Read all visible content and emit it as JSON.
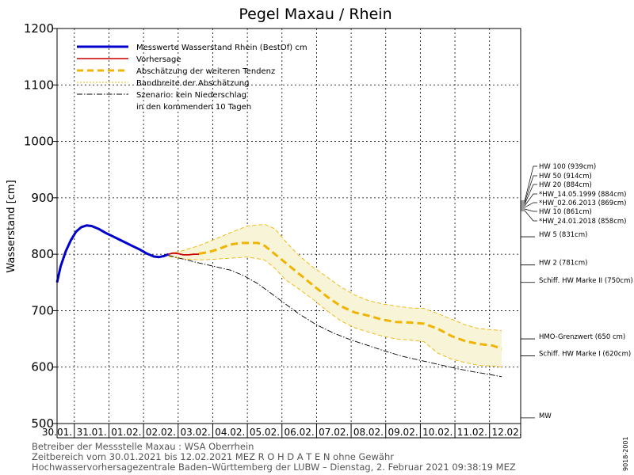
{
  "chart_data": {
    "type": "line",
    "title": "Pegel Maxau / Rhein",
    "ylabel": "Wasserstand [cm]",
    "ylim": [
      500,
      1200
    ],
    "yticks": [
      500,
      600,
      700,
      800,
      900,
      1000,
      1100,
      1200
    ],
    "xlim": [
      0,
      13.4
    ],
    "xticks": [
      "30.01.",
      "31.01.",
      "01.02.",
      "02.02.",
      "03.02.",
      "04.02.",
      "05.02.",
      "06.02.",
      "07.02.",
      "08.02.",
      "09.02.",
      "10.02.",
      "11.02.",
      "12.02."
    ],
    "grid": true,
    "legend_position": "top-left",
    "legend": [
      {
        "label": "Messwerte Wasserstand Rhein (BestOf)   cm",
        "color": "#0000cc",
        "style": "solid-thick"
      },
      {
        "label": "Vorhersage",
        "color": "#cc0000",
        "style": "solid"
      },
      {
        "label": "Abschätzung der weiteren Tendenz",
        "color": "#f0b400",
        "style": "dashed-thick"
      },
      {
        "label": "Bandbreite der Abschätzung",
        "color": "#f0b400",
        "style": "dotted"
      },
      {
        "label": "Szenario: kein Niederschlag",
        "color": "#000000",
        "style": "dash-dot"
      },
      {
        "label": "in den kommenden 10 Tagen",
        "color": "",
        "style": "none"
      }
    ],
    "series": [
      {
        "name": "Messwerte Wasserstand Rhein (BestOf)",
        "color": "#0000cc",
        "x": [
          0,
          0.1,
          0.25,
          0.4,
          0.55,
          0.7,
          0.85,
          1.0,
          1.2,
          1.4,
          1.6,
          1.8,
          2.0,
          2.2,
          2.4,
          2.6,
          2.8,
          2.95,
          3.1,
          3.22
        ],
        "y": [
          750,
          778,
          805,
          825,
          840,
          848,
          851,
          850,
          845,
          838,
          832,
          826,
          820,
          814,
          808,
          801,
          796,
          795,
          797,
          800
        ]
      },
      {
        "name": "Vorhersage",
        "color": "#cc0000",
        "x": [
          3.22,
          3.35,
          3.5,
          3.65,
          3.8,
          3.95,
          4.1
        ],
        "y": [
          800,
          802,
          801,
          799,
          799,
          800,
          800
        ]
      },
      {
        "name": "Abschätzung der weiteren Tendenz",
        "color": "#f0b400",
        "x": [
          4.1,
          4.4,
          4.7,
          5.0,
          5.3,
          5.6,
          5.8,
          6.0,
          6.3,
          6.6,
          7.0,
          7.4,
          7.8,
          8.2,
          8.6,
          9.0,
          9.4,
          9.8,
          10.2,
          10.6,
          11.0,
          11.4,
          11.8,
          12.2,
          12.6,
          12.85
        ],
        "y": [
          801,
          804,
          810,
          817,
          820,
          820,
          820,
          815,
          800,
          785,
          765,
          745,
          725,
          708,
          697,
          691,
          684,
          680,
          679,
          677,
          668,
          655,
          646,
          641,
          638,
          632
        ]
      },
      {
        "name": "Bandbreite der Abschätzung (oben)",
        "color": "#f0b400",
        "x": [
          3.22,
          3.6,
          4.1,
          4.5,
          5.0,
          5.5,
          6.0,
          6.3,
          6.6,
          7.0,
          7.4,
          7.8,
          8.2,
          8.6,
          9.0,
          9.4,
          9.8,
          10.2,
          10.6,
          11.0,
          11.4,
          11.8,
          12.2,
          12.6,
          12.85
        ],
        "y": [
          800,
          806,
          815,
          825,
          838,
          850,
          853,
          845,
          823,
          797,
          777,
          760,
          742,
          728,
          718,
          712,
          708,
          705,
          704,
          695,
          685,
          675,
          668,
          666,
          665
        ]
      },
      {
        "name": "Bandbreite der Abschätzung (unten)",
        "color": "#f0b400",
        "x": [
          3.22,
          3.6,
          4.1,
          4.5,
          5.0,
          5.5,
          6.0,
          6.3,
          6.6,
          7.0,
          7.4,
          7.8,
          8.2,
          8.6,
          9.0,
          9.4,
          9.8,
          10.2,
          10.6,
          11.0,
          11.4,
          11.8,
          12.2,
          12.6,
          12.85
        ],
        "y": [
          796,
          792,
          790,
          791,
          793,
          795,
          790,
          775,
          755,
          738,
          720,
          700,
          682,
          670,
          662,
          655,
          650,
          648,
          645,
          625,
          614,
          608,
          603,
          602,
          600
        ]
      },
      {
        "name": "Szenario: kein Niederschlag",
        "color": "#000000",
        "x": [
          3.22,
          3.6,
          4.0,
          4.5,
          5.0,
          5.4,
          5.8,
          6.2,
          6.6,
          7.0,
          7.5,
          8.0,
          8.5,
          9.0,
          9.5,
          10.0,
          10.5,
          11.0,
          11.5,
          12.0,
          12.5,
          12.85
        ],
        "y": [
          798,
          792,
          786,
          779,
          772,
          762,
          748,
          730,
          712,
          694,
          675,
          660,
          648,
          638,
          628,
          619,
          612,
          605,
          598,
          592,
          587,
          583
        ]
      }
    ],
    "reference_lines": [
      {
        "label": "HW 100 (939cm)"
      },
      {
        "label": "HW 50 (914cm)"
      },
      {
        "label": "HW 20 (884cm)"
      },
      {
        "label": "*HW_14.05.1999 (884cm)"
      },
      {
        "label": "*HW_02.06.2013 (869cm)"
      },
      {
        "label": "HW 10 (861cm)"
      },
      {
        "label": "*HW_24.01.2018 (858cm)"
      },
      {
        "label": "HW 5 (831cm)",
        "value": 831
      },
      {
        "label": "HW 2 (781cm)",
        "value": 781
      },
      {
        "label": "Schiff. HW Marke II (750cm)",
        "value": 750
      },
      {
        "label": "HMO-Grenzwert (650 cm)",
        "value": 650
      },
      {
        "label": "Schiff. HW Marke I (620cm)",
        "value": 620
      },
      {
        "label": "MW",
        "value": 510
      }
    ]
  },
  "footer": {
    "line1": "Betreiber der Messstelle Maxau : WSA Oberrhein",
    "line2": "Zeitbereich vom 30.01.2021 bis 12.02.2021     MEZ     R O H D A T E N  ohne Gewähr",
    "line3": "Hochwasservorhersagezentrale Baden–Württemberg der LUBW – Dienstag, 2. Februar 2021 09:38:19 MEZ"
  },
  "side_text": "9018-2001",
  "colors": {
    "measured": "#0000cc",
    "forecast": "#cc0000",
    "tendency": "#f0b400",
    "band_fill": "#f8f4d8",
    "scenario": "#000000"
  }
}
